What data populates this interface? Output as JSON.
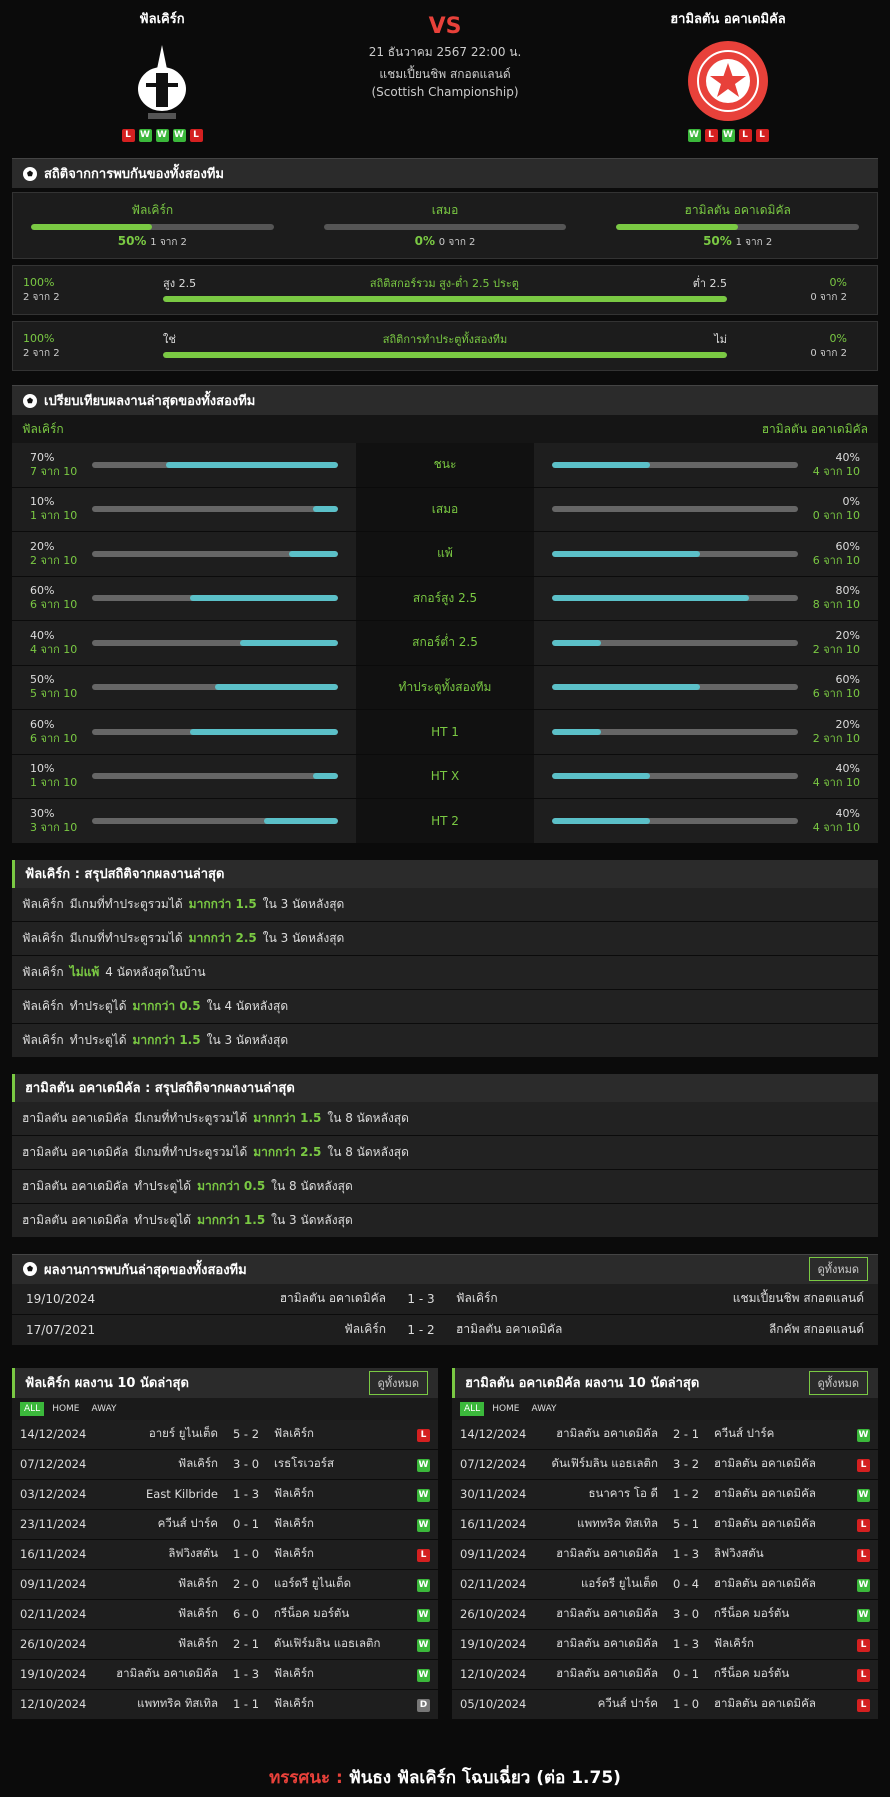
{
  "header": {
    "vs": "VS",
    "datetime": "21 ธันวาคม 2567 22:00 น.",
    "league": "แชมเปี้ยนชิพ สกอตแลนด์ (Scottish Championship)",
    "home": {
      "name": "ฟัลเคิร์ก",
      "form": [
        "L",
        "W",
        "W",
        "W",
        "L"
      ]
    },
    "away": {
      "name": "ฮามิลตัน อคาเดมิคัล",
      "form": [
        "W",
        "L",
        "W",
        "L",
        "L"
      ]
    }
  },
  "h2h_stats": {
    "title": "สถิติจากการพบกันของทั้งสองทีม",
    "columns": [
      {
        "label": "ฟัลเคิร์ก",
        "pct": "50%",
        "count": "1 จาก 2"
      },
      {
        "label": "เสมอ",
        "pct": "0%",
        "count": "0 จาก 2"
      },
      {
        "label": "ฮามิลตัน อคาเดมิคัล",
        "pct": "50%",
        "count": "1 จาก 2"
      }
    ],
    "rows": [
      {
        "left_pct": "100%",
        "left_count": "2 จาก 2",
        "left_label": "สูง 2.5",
        "title": "สถิติสกอร์รวม สูง-ต่ำ 2.5 ประตู",
        "right_label": "ต่ำ 2.5",
        "right_pct": "0%",
        "right_count": "0 จาก 2"
      },
      {
        "left_pct": "100%",
        "left_count": "2 จาก 2",
        "left_label": "ใช่",
        "title": "สถิติการทำประตูทั้งสองทีม",
        "right_label": "ไม่",
        "right_pct": "0%",
        "right_count": "0 จาก 2"
      }
    ]
  },
  "comparison": {
    "title": "เปรียบเทียบผลงานล่าสุดของทั้งสองทีม",
    "home": "ฟัลเคิร์ก",
    "away": "ฮามิลตัน อคาเดมิคัล",
    "rows": [
      {
        "label": "ชนะ",
        "home_pct": "70%",
        "home_count": "7 จาก 10",
        "away_pct": "40%",
        "away_count": "4 จาก 10"
      },
      {
        "label": "เสมอ",
        "home_pct": "10%",
        "home_count": "1 จาก 10",
        "away_pct": "0%",
        "away_count": "0 จาก 10"
      },
      {
        "label": "แพ้",
        "home_pct": "20%",
        "home_count": "2 จาก 10",
        "away_pct": "60%",
        "away_count": "6 จาก 10"
      },
      {
        "label": "สกอร์สูง 2.5",
        "home_pct": "60%",
        "home_count": "6 จาก 10",
        "away_pct": "80%",
        "away_count": "8 จาก 10"
      },
      {
        "label": "สกอร์ต่ำ 2.5",
        "home_pct": "40%",
        "home_count": "4 จาก 10",
        "away_pct": "20%",
        "away_count": "2 จาก 10"
      },
      {
        "label": "ทำประตูทั้งสองทีม",
        "home_pct": "50%",
        "home_count": "5 จาก 10",
        "away_pct": "60%",
        "away_count": "6 จาก 10"
      },
      {
        "label": "HT 1",
        "home_pct": "60%",
        "home_count": "6 จาก 10",
        "away_pct": "20%",
        "away_count": "2 จาก 10"
      },
      {
        "label": "HT X",
        "home_pct": "10%",
        "home_count": "1 จาก 10",
        "away_pct": "40%",
        "away_count": "4 จาก 10"
      },
      {
        "label": "HT 2",
        "home_pct": "30%",
        "home_count": "3 จาก 10",
        "away_pct": "40%",
        "away_count": "4 จาก 10"
      }
    ]
  },
  "summaries": [
    {
      "title": "ฟัลเคิร์ก : สรุปสถิติจากผลงานล่าสุด",
      "items": [
        {
          "team": "ฟัลเคิร์ก",
          "text": "มีเกมที่ทำประตูรวมได้",
          "hl": "มากกว่า 1.5",
          "after": "ใน 3 นัดหลังสุด"
        },
        {
          "team": "ฟัลเคิร์ก",
          "text": "มีเกมที่ทำประตูรวมได้",
          "hl": "มากกว่า 2.5",
          "after": "ใน 3 นัดหลังสุด"
        },
        {
          "team": "ฟัลเคิร์ก",
          "hl": "ไม่แพ้",
          "after": "4 นัดหลังสุดในบ้าน"
        },
        {
          "team": "ฟัลเคิร์ก",
          "text": "ทำประตูได้",
          "hl": "มากกว่า 0.5",
          "after": "ใน 4 นัดหลังสุด"
        },
        {
          "team": "ฟัลเคิร์ก",
          "text": "ทำประตูได้",
          "hl": "มากกว่า 1.5",
          "after": "ใน 3 นัดหลังสุด"
        }
      ]
    },
    {
      "title": "ฮามิลตัน อคาเดมิคัล : สรุปสถิติจากผลงานล่าสุด",
      "items": [
        {
          "team": "ฮามิลตัน อคาเดมิคัล",
          "text": "มีเกมที่ทำประตูรวมได้",
          "hl": "มากกว่า 1.5",
          "after": "ใน 8 นัดหลังสุด"
        },
        {
          "team": "ฮามิลตัน อคาเดมิคัล",
          "text": "มีเกมที่ทำประตูรวมได้",
          "hl": "มากกว่า 2.5",
          "after": "ใน 8 นัดหลังสุด"
        },
        {
          "team": "ฮามิลตัน อคาเดมิคัล",
          "text": "ทำประตูได้",
          "hl": "มากกว่า 0.5",
          "after": "ใน 8 นัดหลังสุด"
        },
        {
          "team": "ฮามิลตัน อคาเดมิคัล",
          "text": "ทำประตูได้",
          "hl": "มากกว่า 1.5",
          "after": "ใน 3 นัดหลังสุด"
        }
      ]
    }
  ],
  "h2h_results": {
    "title": "ผลงานการพบกันล่าสุดของทั้งสองทีม",
    "button": "ดูทั้งหมด",
    "rows": [
      [
        "19/10/2024",
        "ฮามิลตัน อคาเดมิคัล",
        "1 - 3",
        "ฟัลเคิร์ก",
        "แชมเปี้ยนชิพ สกอตแลนด์"
      ],
      [
        "17/07/2021",
        "ฟัลเคิร์ก",
        "1 - 2",
        "ฮามิลตัน อคาเดมิคัล",
        "ลีกคัพ สกอตแลนด์"
      ]
    ]
  },
  "recent": [
    {
      "title": "ฟัลเคิร์ก ผลงาน 10 นัดล่าสุด",
      "button": "ดูทั้งหมด",
      "tabs": [
        "ALL",
        "HOME",
        "AWAY"
      ],
      "matches": [
        [
          "14/12/2024",
          "อายร์ ยูไนเต็ด",
          "5 - 2",
          "ฟัลเคิร์ก",
          "L"
        ],
        [
          "07/12/2024",
          "ฟัลเคิร์ก",
          "3 - 0",
          "เรธโรเวอร์ส",
          "W"
        ],
        [
          "03/12/2024",
          "East Kilbride",
          "1 - 3",
          "ฟัลเคิร์ก",
          "W"
        ],
        [
          "23/11/2024",
          "ควีนส์ ปาร์ค",
          "0 - 1",
          "ฟัลเคิร์ก",
          "W"
        ],
        [
          "16/11/2024",
          "ลิฟวิงสตัน",
          "1 - 0",
          "ฟัลเคิร์ก",
          "L"
        ],
        [
          "09/11/2024",
          "ฟัลเคิร์ก",
          "2 - 0",
          "แอร์ดรี ยูไนเต็ด",
          "W"
        ],
        [
          "02/11/2024",
          "ฟัลเคิร์ก",
          "6 - 0",
          "กรีน็อค มอร์ตัน",
          "W"
        ],
        [
          "26/10/2024",
          "ฟัลเคิร์ก",
          "2 - 1",
          "ดันเฟิร์มลิน แอธเลติก",
          "W"
        ],
        [
          "19/10/2024",
          "ฮามิลตัน อคาเดมิคัล",
          "1 - 3",
          "ฟัลเคิร์ก",
          "W"
        ],
        [
          "12/10/2024",
          "แพททริค ทิสเทิล",
          "1 - 1",
          "ฟัลเคิร์ก",
          "D"
        ]
      ]
    },
    {
      "title": "ฮามิลตัน อคาเดมิคัล ผลงาน 10 นัดล่าสุด",
      "button": "ดูทั้งหมด",
      "tabs": [
        "ALL",
        "HOME",
        "AWAY"
      ],
      "matches": [
        [
          "14/12/2024",
          "ฮามิลตัน อคาเดมิคัล",
          "2 - 1",
          "ควีนส์ ปาร์ค",
          "W"
        ],
        [
          "07/12/2024",
          "ดันเฟิร์มลิน แอธเลติก",
          "3 - 2",
          "ฮามิลตัน อคาเดมิคัล",
          "L"
        ],
        [
          "30/11/2024",
          "ธนาคาร โอ ดี",
          "1 - 2",
          "ฮามิลตัน อคาเดมิคัล",
          "W"
        ],
        [
          "16/11/2024",
          "แพททริค ทิสเทิล",
          "5 - 1",
          "ฮามิลตัน อคาเดมิคัล",
          "L"
        ],
        [
          "09/11/2024",
          "ฮามิลตัน อคาเดมิคัล",
          "1 - 3",
          "ลิฟวิงสตัน",
          "L"
        ],
        [
          "02/11/2024",
          "แอร์ดรี ยูไนเต็ด",
          "0 - 4",
          "ฮามิลตัน อคาเดมิคัล",
          "W"
        ],
        [
          "26/10/2024",
          "ฮามิลตัน อคาเดมิคัล",
          "3 - 0",
          "กรีน็อค มอร์ตัน",
          "W"
        ],
        [
          "19/10/2024",
          "ฮามิลตัน อคาเดมิคัล",
          "1 - 3",
          "ฟัลเคิร์ก",
          "L"
        ],
        [
          "12/10/2024",
          "ฮามิลตัน อคาเดมิคัล",
          "0 - 1",
          "กรีน็อค มอร์ตัน",
          "L"
        ],
        [
          "05/10/2024",
          "ควีนส์ ปาร์ค",
          "1 - 0",
          "ฮามิลตัน อคาเดมิคัล",
          "L"
        ]
      ]
    }
  ],
  "verdict": {
    "label": "ทรรศนะ :",
    "text": "ฟันธง ฟัลเคิร์ก โฉบเฉี่ยว (ต่อ 1.75)"
  }
}
